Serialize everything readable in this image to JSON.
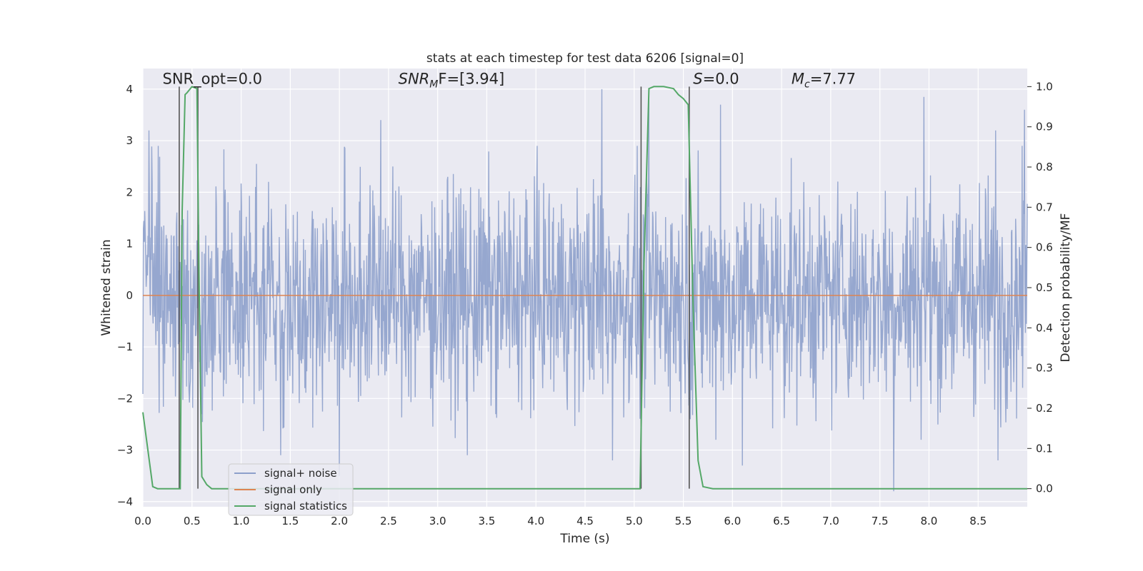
{
  "chart_data": {
    "type": "line",
    "title": "stats at each timestep for test data 6206 [signal=0]",
    "xlabel": "Time (s)",
    "ylabel": "Whitened strain",
    "y2label": "Detection probability/MF",
    "xlim": [
      0.0,
      9.0
    ],
    "ylim": [
      -4.1,
      4.4
    ],
    "y2lim": [
      -0.045,
      1.045
    ],
    "xticks": [
      0.0,
      0.5,
      1.0,
      1.5,
      2.0,
      2.5,
      3.0,
      3.5,
      4.0,
      4.5,
      5.0,
      5.5,
      6.0,
      6.5,
      7.0,
      7.5,
      8.0,
      8.5
    ],
    "xtick_labels": [
      "0.0",
      "0.5",
      "1.0",
      "1.5",
      "2.0",
      "2.5",
      "3.0",
      "3.5",
      "4.0",
      "4.5",
      "5.0",
      "5.5",
      "6.0",
      "6.5",
      "7.0",
      "7.5",
      "8.0",
      "8.5"
    ],
    "yticks": [
      4,
      3,
      2,
      1,
      0,
      -1,
      -2,
      -3,
      -4
    ],
    "ytick_labels": [
      "4",
      "3",
      "2",
      "1",
      "0",
      "−1",
      "−2",
      "−3",
      "−4"
    ],
    "y2ticks": [
      1.0,
      0.9,
      0.8,
      0.7,
      0.6,
      0.5,
      0.4,
      0.3,
      0.2,
      0.1,
      0.0
    ],
    "y2tick_labels": [
      "1.0",
      "0.9",
      "0.8",
      "0.7",
      "0.6",
      "0.5",
      "0.4",
      "0.3",
      "0.2",
      "0.1",
      "0.0"
    ],
    "grid": true,
    "legend_position": "lower-left",
    "series": [
      {
        "name": "signal+ noise",
        "color": "#8da0cb",
        "kind": "noise",
        "typical_envelope": [
          -2.2,
          2.3
        ],
        "peak_values": [
          [
            0.06,
            3.2
          ],
          [
            2.42,
            3.4
          ],
          [
            4.67,
            4.0
          ],
          [
            5.15,
            3.9
          ],
          [
            5.88,
            3.7
          ],
          [
            7.95,
            3.85
          ],
          [
            8.68,
            3.2
          ],
          [
            8.97,
            3.6
          ],
          [
            1.4,
            -3.1
          ],
          [
            2.0,
            -3.5
          ],
          [
            3.3,
            -3.1
          ],
          [
            4.78,
            -3.2
          ],
          [
            6.1,
            -3.3
          ],
          [
            7.64,
            -3.8
          ],
          [
            8.7,
            -3.2
          ]
        ]
      },
      {
        "name": "signal only",
        "color": "#dd8452",
        "x": [
          0.0,
          9.0
        ],
        "y": [
          0.0,
          0.0
        ]
      },
      {
        "name": "signal statistics",
        "color": "#55a868",
        "axis": "right",
        "x": [
          0.0,
          0.1,
          0.15,
          0.2,
          0.25,
          0.3,
          0.35,
          0.38,
          0.4,
          0.43,
          0.45,
          0.5,
          0.55,
          0.57,
          0.6,
          0.65,
          0.7,
          0.75,
          0.8,
          5.0,
          5.06,
          5.1,
          5.15,
          5.2,
          5.3,
          5.4,
          5.45,
          5.5,
          5.55,
          5.6,
          5.65,
          5.7,
          5.8,
          9.0
        ],
        "y": [
          0.19,
          0.005,
          0.0,
          0.0,
          0.0,
          0.0,
          0.0,
          0.0,
          0.69,
          0.98,
          0.985,
          1.0,
          0.995,
          0.55,
          0.03,
          0.01,
          0.0,
          0.0,
          0.0,
          0.0,
          0.0,
          0.56,
          0.995,
          1.0,
          1.0,
          0.995,
          0.98,
          0.97,
          0.955,
          0.45,
          0.07,
          0.005,
          0.0,
          0.0
        ]
      }
    ],
    "vertical_lines": [
      0.37,
      0.56,
      5.07,
      5.56
    ],
    "annotations": [
      {
        "text": "SNR_opt=0.0",
        "x": 0.2,
        "y": 4.1,
        "italic": false
      },
      {
        "text": "SNR",
        "sub": "M",
        "after": "F=[3.94]",
        "x": 2.6,
        "y": 4.1,
        "italic": true
      },
      {
        "text": "S",
        "after": "=0.0",
        "x": 5.6,
        "y": 4.1,
        "italic": true
      },
      {
        "text": "M",
        "sub": "c",
        "after": "=7.77",
        "x": 6.6,
        "y": 4.1,
        "italic": true
      }
    ]
  }
}
